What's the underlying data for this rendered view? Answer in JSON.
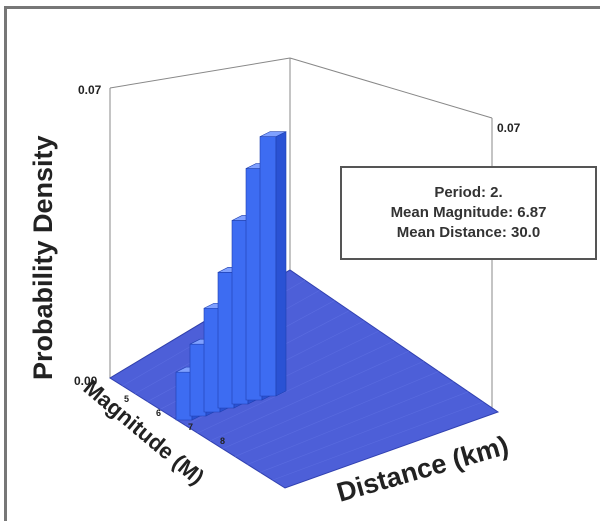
{
  "chart_data": {
    "type": "bar3d",
    "ylabel": "Probability Density",
    "xlabel": "Distance (km)",
    "zlabel": "Magnitude (M)",
    "ylim": [
      0.0,
      0.07
    ],
    "y_ticks": [
      "0.07",
      "0.00"
    ],
    "right_tick": "0.07",
    "magnitude_ticks": [
      "5",
      "6",
      "7",
      "8"
    ],
    "mag_series": [
      0.012,
      0.018,
      0.026,
      0.034,
      0.046,
      0.058,
      0.065
    ],
    "info": {
      "period": "Period: 2.",
      "mean_magnitude": "Mean Magnitude: 6.87",
      "mean_distance": "Mean Distance: 30.0"
    },
    "colors": {
      "bar_front": "#3d6cf2",
      "bar_side": "#2a52d4",
      "bar_top": "#7fa0ff",
      "floor": "#4d5fd8"
    }
  }
}
